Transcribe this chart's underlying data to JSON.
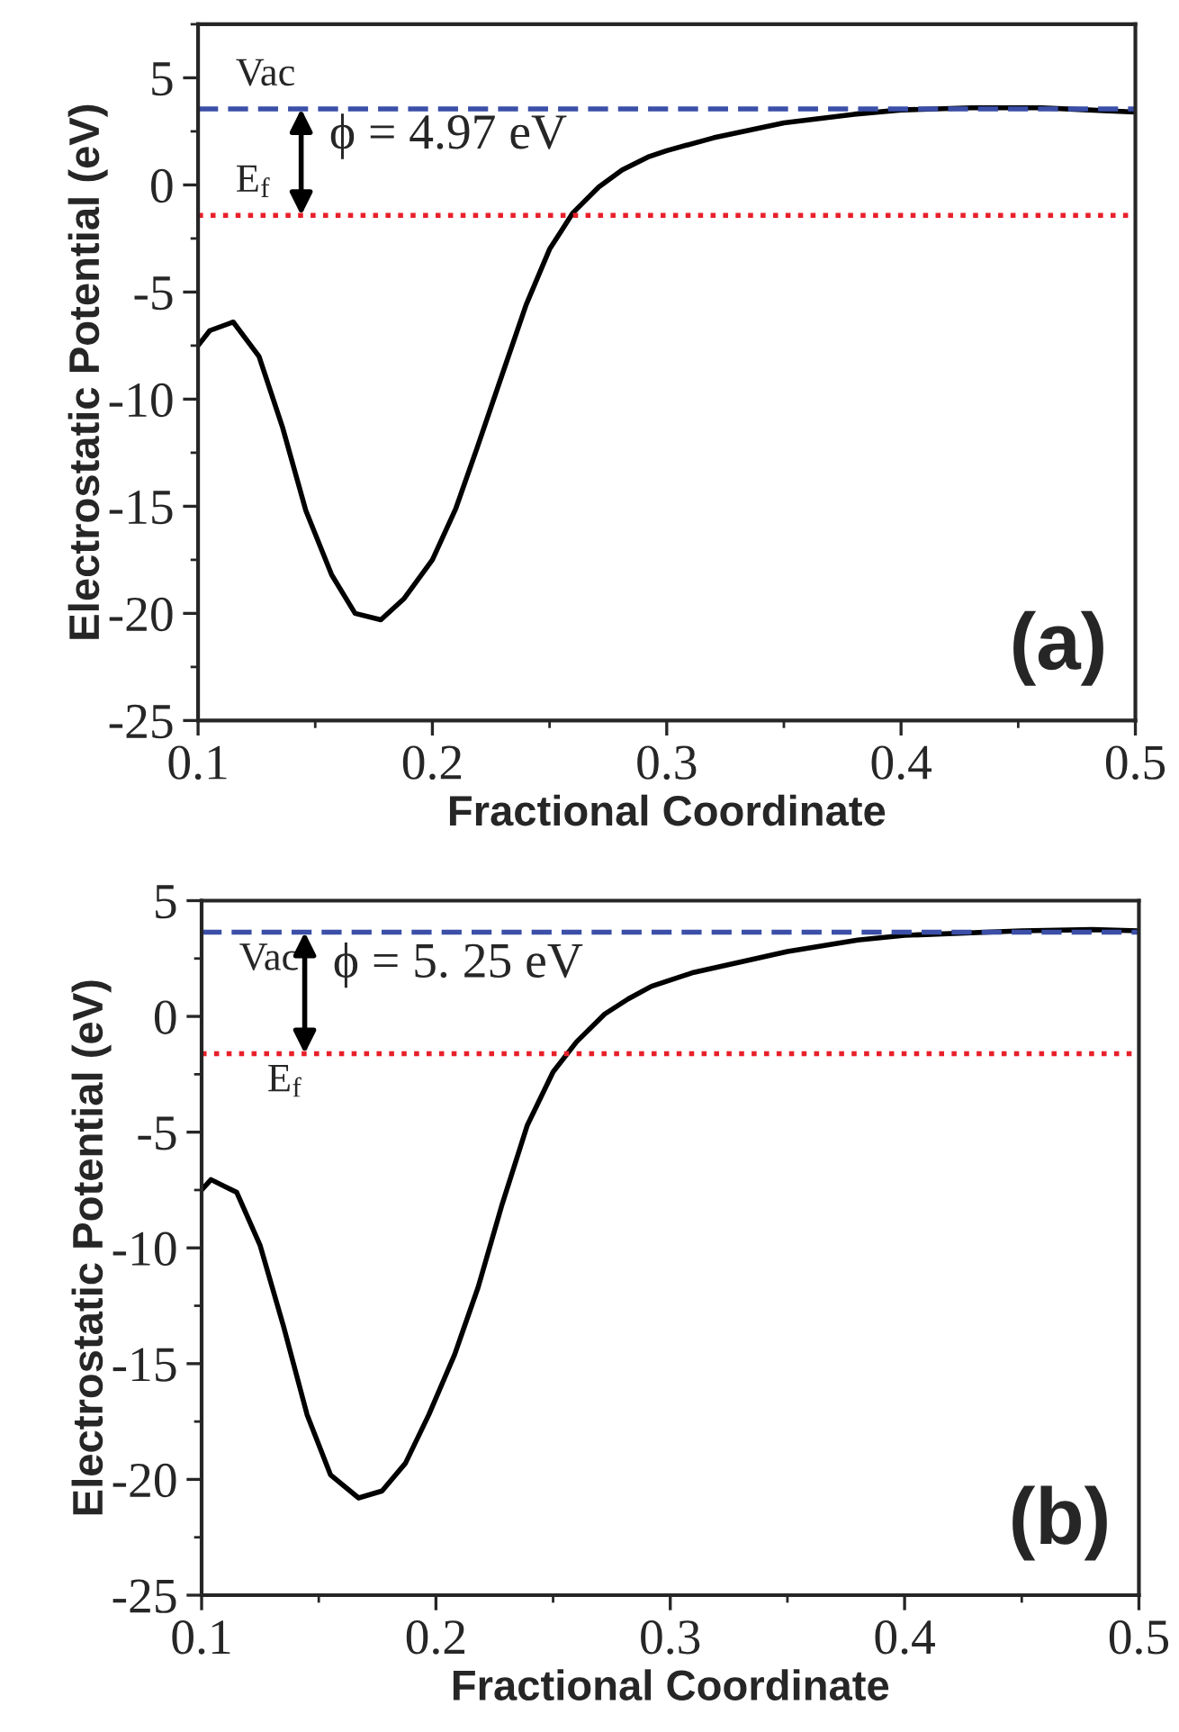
{
  "chart_data": [
    {
      "type": "line",
      "xlabel": "Fractional Coordinate",
      "ylabel": "Electrostatic Potential (eV)",
      "xlim": [
        0.1,
        0.5
      ],
      "ylim": [
        -25,
        7.5
      ],
      "xticks": [
        0.1,
        0.2,
        0.3,
        0.4,
        0.5
      ],
      "yticks": [
        -25,
        -20,
        -15,
        -10,
        -5,
        0,
        5
      ],
      "series": [
        {
          "color": "#000000",
          "x": [
            0.1,
            0.105,
            0.115,
            0.126,
            0.136,
            0.146,
            0.157,
            0.167,
            0.178,
            0.188,
            0.2,
            0.21,
            0.219,
            0.229,
            0.24,
            0.25,
            0.26,
            0.271,
            0.281,
            0.292,
            0.3,
            0.32,
            0.35,
            0.38,
            0.4,
            0.43,
            0.46,
            0.48,
            0.5
          ],
          "values": [
            -7.5,
            -6.8,
            -6.4,
            -8.0,
            -11.3,
            -15.2,
            -18.2,
            -20.0,
            -20.3,
            -19.3,
            -17.5,
            -15.1,
            -12.3,
            -9.1,
            -5.6,
            -3.0,
            -1.3,
            -0.1,
            0.7,
            1.3,
            1.6,
            2.2,
            2.9,
            3.3,
            3.5,
            3.6,
            3.6,
            3.5,
            3.4
          ]
        }
      ],
      "ref_lines": [
        {
          "axis": "y",
          "value": 3.55,
          "label": "Vac",
          "color": "#3b4fa8",
          "line_style": "dashed"
        },
        {
          "axis": "y",
          "value": -1.42,
          "label": "E$_{f}$",
          "color": "#e8202a",
          "line_style": "dotted"
        }
      ],
      "annotations": [
        "ϕ = 4.97 eV",
        "(a)"
      ],
      "grid": false,
      "legend": false
    },
    {
      "type": "line",
      "xlabel": "Fractional Coordinate",
      "ylabel": "Electrostatic Potential (eV)",
      "xlim": [
        0.1,
        0.5
      ],
      "ylim": [
        -25,
        5
      ],
      "xticks": [
        0.1,
        0.2,
        0.3,
        0.4,
        0.5
      ],
      "yticks": [
        -25,
        -20,
        -15,
        -10,
        -5,
        0,
        5
      ],
      "series": [
        {
          "color": "#000000",
          "x": [
            0.1,
            0.104,
            0.115,
            0.125,
            0.135,
            0.145,
            0.155,
            0.167,
            0.177,
            0.187,
            0.197,
            0.208,
            0.218,
            0.228,
            0.239,
            0.25,
            0.26,
            0.272,
            0.282,
            0.292,
            0.31,
            0.35,
            0.38,
            0.4,
            0.45,
            0.48,
            0.5
          ],
          "values": [
            -7.5,
            -7.05,
            -7.6,
            -9.9,
            -13.4,
            -17.2,
            -19.8,
            -20.8,
            -20.5,
            -19.3,
            -17.2,
            -14.6,
            -11.7,
            -8.2,
            -4.7,
            -2.4,
            -1.1,
            0.1,
            0.75,
            1.3,
            1.9,
            2.8,
            3.3,
            3.5,
            3.7,
            3.75,
            3.7
          ]
        }
      ],
      "ref_lines": [
        {
          "axis": "y",
          "value": 3.64,
          "label": "Vac",
          "color": "#3b4fa8",
          "line_style": "dashed"
        },
        {
          "axis": "y",
          "value": -1.61,
          "label": "E$_{f}$",
          "color": "#e8202a",
          "line_style": "dotted"
        }
      ],
      "annotations": [
        "ϕ = 5. 25 eV",
        "(b)"
      ],
      "grid": false,
      "legend": false
    }
  ]
}
